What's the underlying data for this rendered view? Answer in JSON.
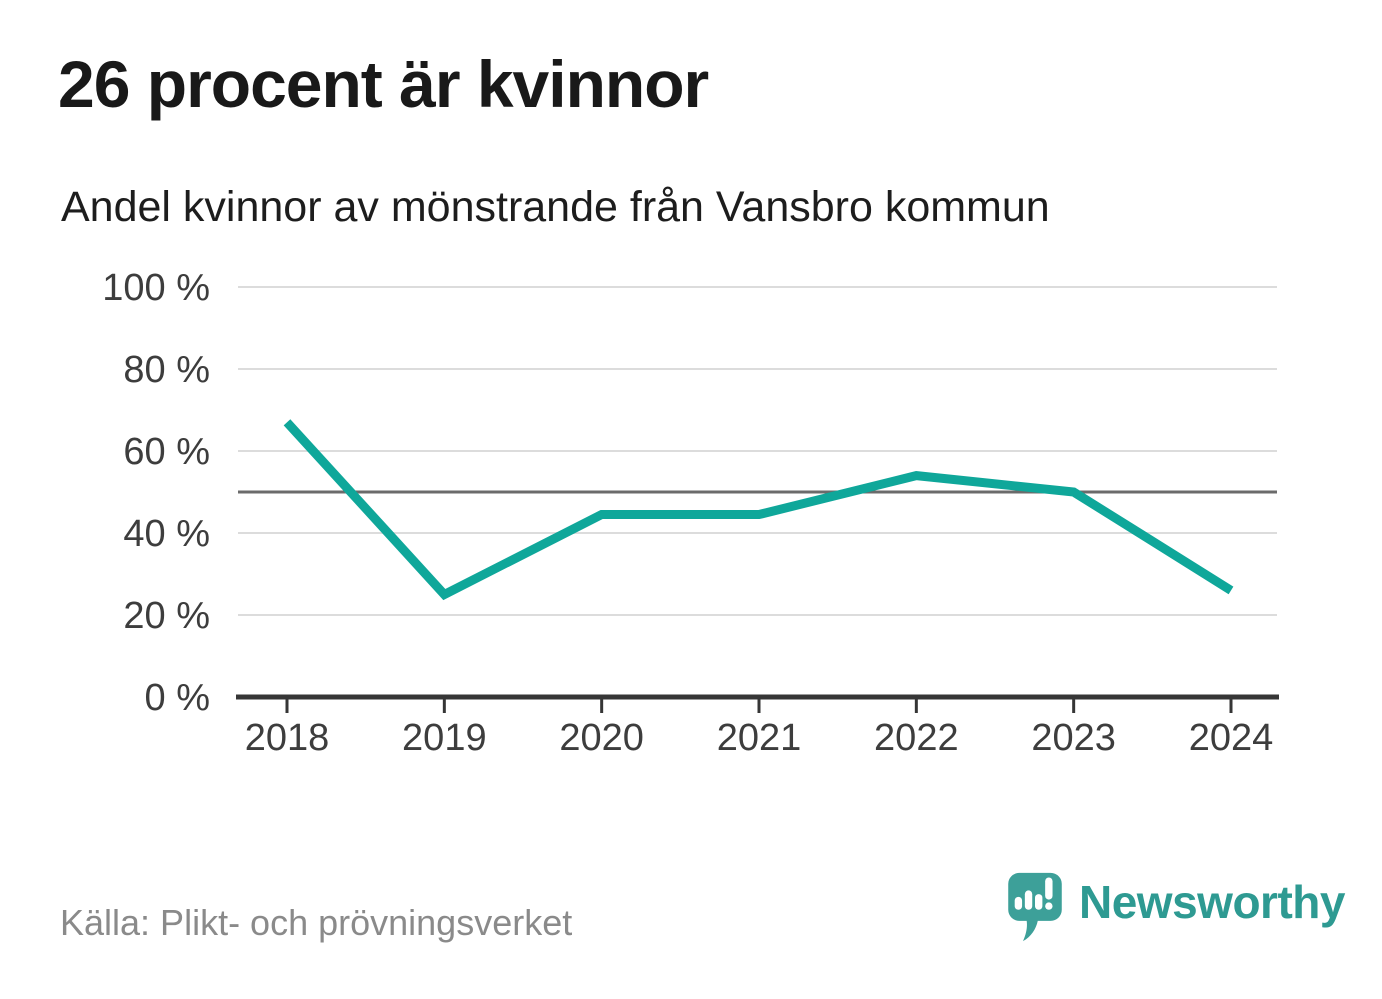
{
  "chart_data": {
    "type": "line",
    "title": "26 procent är kvinnor",
    "subtitle": "Andel kvinnor av mönstrande från Vansbro kommun",
    "categories": [
      "2018",
      "2019",
      "2020",
      "2021",
      "2022",
      "2023",
      "2024"
    ],
    "values": [
      67,
      25,
      44.5,
      44.5,
      54,
      50,
      26
    ],
    "unit": "%",
    "xlabel": "",
    "ylabel": "",
    "ylim": [
      0,
      100
    ],
    "yticks": [
      0,
      20,
      40,
      60,
      80,
      100
    ],
    "ytick_labels": [
      "0 %",
      "20 %",
      "40 %",
      "60 %",
      "80 %",
      "100 %"
    ],
    "reference_line": 50,
    "grid": true,
    "legend_position": "none",
    "colors": {
      "line": "#0fa79a",
      "grid": "#dcdcdc",
      "reference": "#6b6b6b",
      "axis": "#363636",
      "tick_text": "#3d3d3d"
    }
  },
  "footer": {
    "source": "Källa: Plikt- och prövningsverket",
    "brand": {
      "name": "Newsworthy",
      "bubble_color": "#3da099",
      "text_color": "#2e9a92"
    }
  }
}
